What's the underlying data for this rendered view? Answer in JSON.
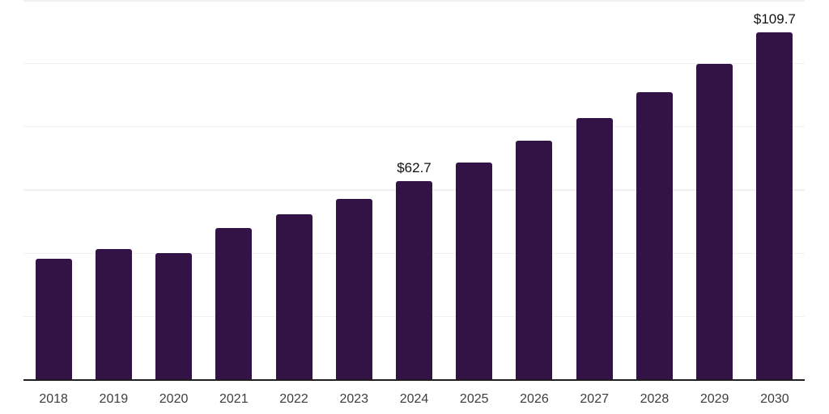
{
  "chart_data": {
    "type": "bar",
    "title": "",
    "xlabel": "",
    "ylabel": "",
    "categories": [
      "2018",
      "2019",
      "2020",
      "2021",
      "2022",
      "2023",
      "2024",
      "2025",
      "2026",
      "2027",
      "2028",
      "2029",
      "2030"
    ],
    "values": [
      38.3,
      41.4,
      40.0,
      48.1,
      52.3,
      57.3,
      62.7,
      68.8,
      75.5,
      82.8,
      91.0,
      99.9,
      109.7
    ],
    "annotations": [
      {
        "category": "2024",
        "text": "$62.7"
      },
      {
        "category": "2030",
        "text": "$109.7"
      }
    ],
    "ylim": [
      0,
      120
    ],
    "gridline_values": [
      20,
      40,
      60,
      80,
      100,
      120
    ],
    "grid": "horizontal",
    "legend": "none",
    "colors": {
      "bar": "#331346",
      "grid": "#f0eff1",
      "axis": "#1f1f1f",
      "tick_text": "#3d3d3d",
      "value_text": "#121212",
      "background": "#ffffff"
    }
  }
}
